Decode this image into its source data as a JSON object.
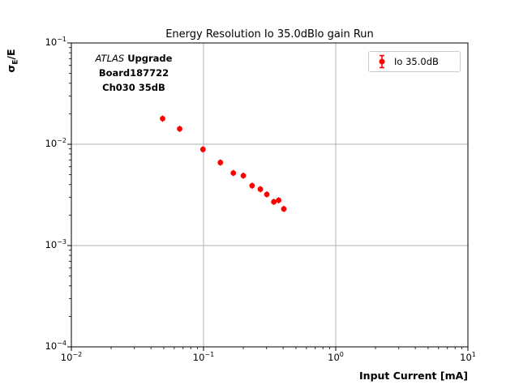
{
  "title": "Energy Resolution Io 35.0dBlo gain Run",
  "annotation": {
    "line1_italic": "ATLAS",
    "line1_bold": "Upgrade",
    "line2": "Board187722",
    "line3": "Ch030 35dB"
  },
  "legend": {
    "label": "Io 35.0dB"
  },
  "axes": {
    "xlabel": "Input Current [mA]",
    "ylabel": {
      "sigma": "σ",
      "sub": "E",
      "rest": "/E"
    }
  },
  "colors": {
    "marker": "#ff0000",
    "grid": "#b0b0b0",
    "spine": "#000000",
    "legend_border": "#cccccc"
  },
  "chart_data": {
    "type": "scatter",
    "title": "Energy Resolution Io 35.0dBlo gain Run",
    "xlabel": "Input Current [mA]",
    "ylabel": "sigma_E/E",
    "xscale": "log",
    "yscale": "log",
    "xlim": [
      0.01,
      10
    ],
    "ylim": [
      0.0001,
      0.1
    ],
    "grid": "major gridlines on both axes",
    "legend_position": "upper right",
    "x_tick_exponents": [
      -2,
      -1,
      0,
      1
    ],
    "y_tick_exponents": [
      -1,
      -2,
      -3,
      -4
    ],
    "series": [
      {
        "name": "Io 35.0dB",
        "marker": "circle-with-errorbar",
        "color": "#ff0000",
        "x": [
          0.049,
          0.066,
          0.099,
          0.134,
          0.168,
          0.2,
          0.233,
          0.269,
          0.301,
          0.34,
          0.37,
          0.405
        ],
        "y": [
          0.0179,
          0.0142,
          0.0089,
          0.0066,
          0.0052,
          0.0049,
          0.0039,
          0.0036,
          0.0032,
          0.0027,
          0.0028,
          0.0023
        ]
      }
    ]
  }
}
